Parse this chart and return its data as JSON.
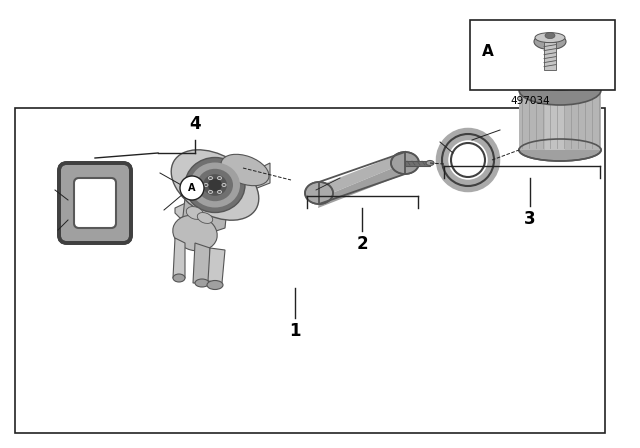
{
  "background_color": "#ffffff",
  "border_color": "#333333",
  "border_linewidth": 1.2,
  "part_number_text": "497034",
  "part_number_fontsize": 7.5,
  "label_fontsize": 12,
  "label_fontweight": "bold",
  "line_color": "#222222",
  "text_color": "#000000",
  "gray_light": "#c8c8c8",
  "gray_mid": "#a0a0a0",
  "gray_dark": "#707070",
  "gray_darker": "#555555",
  "gray_very_dark": "#404040"
}
